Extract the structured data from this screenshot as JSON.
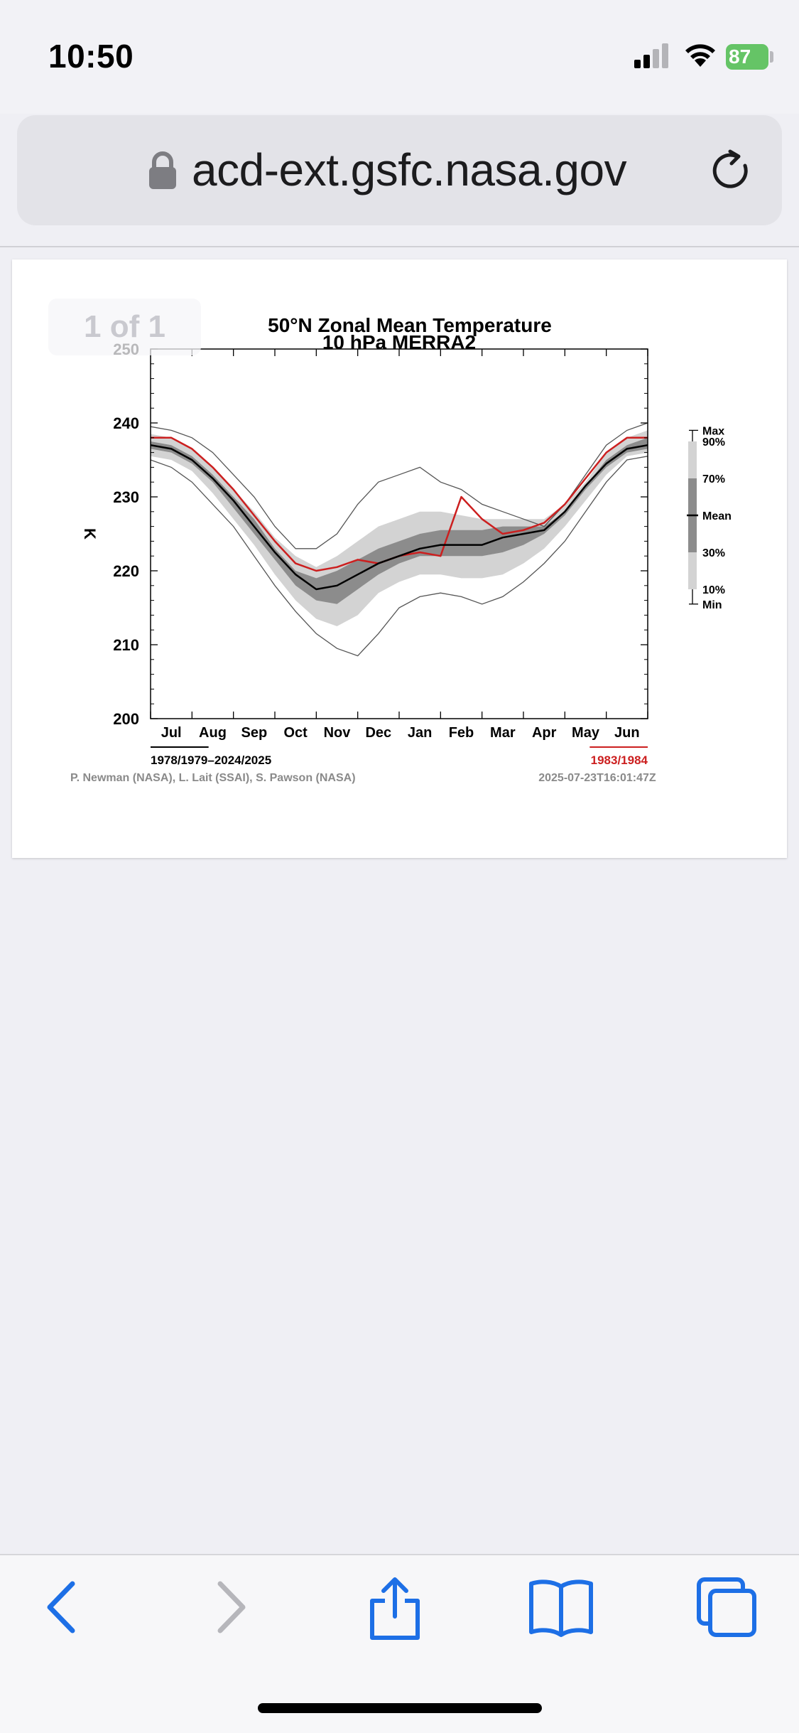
{
  "status_bar": {
    "time": "10:50",
    "battery": "87"
  },
  "browser": {
    "url": "acd-ext.gsfc.nasa.gov"
  },
  "viewer": {
    "pager": "1 of 1"
  },
  "footer": {
    "range_label": "1978/1979–2024/2025",
    "highlight_label": "1983/1984",
    "credits": "P. Newman (NASA), L. Lait (SSAI), S. Pawson (NASA)",
    "timestamp": "2025-07-23T16:01:47Z"
  },
  "colors": {
    "highlight": "#cc1f1f",
    "mean": "#000000",
    "band_outer": "#d3d3d3",
    "band_inner": "#8c8c8c",
    "envelope": "#555555"
  },
  "chart_data": {
    "type": "line",
    "title": "50°N Zonal Mean Temperature",
    "subtitle": "10 hPa   MERRA2",
    "ylabel": "K",
    "ylim": [
      200,
      250
    ],
    "yticks": [
      200,
      210,
      220,
      230,
      240,
      250
    ],
    "categories": [
      "Jul",
      "Aug",
      "Sep",
      "Oct",
      "Nov",
      "Dec",
      "Jan",
      "Feb",
      "Mar",
      "Apr",
      "May",
      "Jun"
    ],
    "x": [
      0,
      0.5,
      1,
      1.5,
      2,
      2.5,
      3,
      3.5,
      4,
      4.5,
      5,
      5.5,
      6,
      6.5,
      7,
      7.5,
      8,
      8.5,
      9,
      9.5,
      10,
      10.5,
      11,
      11.5,
      12
    ],
    "series": [
      {
        "name": "Max",
        "values": [
          239.5,
          239,
          238,
          236,
          233,
          230,
          226,
          223,
          223,
          225,
          229,
          232,
          233,
          234,
          232,
          231,
          229,
          228,
          227,
          226,
          229,
          233,
          237,
          239,
          240
        ]
      },
      {
        "name": "90%",
        "values": [
          238.5,
          238,
          236.5,
          234,
          231,
          228,
          224.5,
          222,
          220.5,
          222,
          224,
          226,
          227,
          228,
          228,
          227.5,
          227,
          227,
          227,
          227,
          229,
          232,
          236,
          238,
          239
        ]
      },
      {
        "name": "70%",
        "values": [
          237.5,
          237,
          235.5,
          233,
          230,
          227,
          223,
          220,
          219,
          220,
          221.5,
          223,
          224,
          225,
          225.5,
          225.5,
          225.5,
          226,
          226,
          226,
          228,
          231.5,
          235,
          237,
          238
        ]
      },
      {
        "name": "Mean",
        "values": [
          237,
          236.5,
          235,
          232.5,
          229.5,
          226,
          222.5,
          219.5,
          217.5,
          218,
          219.5,
          221,
          222,
          223,
          223.5,
          223.5,
          223.5,
          224.5,
          225,
          225.5,
          228,
          231.5,
          234.5,
          236.5,
          237
        ]
      },
      {
        "name": "30%",
        "values": [
          236.5,
          236,
          234.5,
          232,
          228.5,
          225,
          221.5,
          218,
          216,
          215.5,
          217.5,
          219.5,
          221,
          222,
          222,
          222,
          222,
          222.5,
          223.5,
          225,
          227.5,
          231,
          234,
          236,
          236.5
        ]
      },
      {
        "name": "10%",
        "values": [
          235.5,
          235,
          233.5,
          230.5,
          227,
          223.5,
          219.5,
          216,
          213.5,
          212.5,
          214,
          217,
          218.5,
          219.5,
          219.5,
          219,
          219,
          219.5,
          221,
          223,
          226,
          229.5,
          233,
          235.5,
          236
        ]
      },
      {
        "name": "Min",
        "values": [
          235,
          234,
          232,
          229,
          226,
          222,
          218,
          214.5,
          211.5,
          209.5,
          208.5,
          211.5,
          215,
          216.5,
          217,
          216.5,
          215.5,
          216.5,
          218.5,
          221,
          224,
          228,
          232,
          235,
          235.5
        ]
      },
      {
        "name": "1983/1984",
        "values": [
          238,
          238,
          236.5,
          234,
          231,
          227.5,
          224,
          221,
          220,
          220.5,
          221.5,
          221,
          222,
          222.5,
          222,
          230,
          227,
          225,
          225.5,
          226.5,
          229,
          232.5,
          236,
          238,
          238
        ]
      }
    ],
    "legend": [
      "Max",
      "90%",
      "70%",
      "Mean",
      "30%",
      "10%",
      "Min"
    ]
  }
}
